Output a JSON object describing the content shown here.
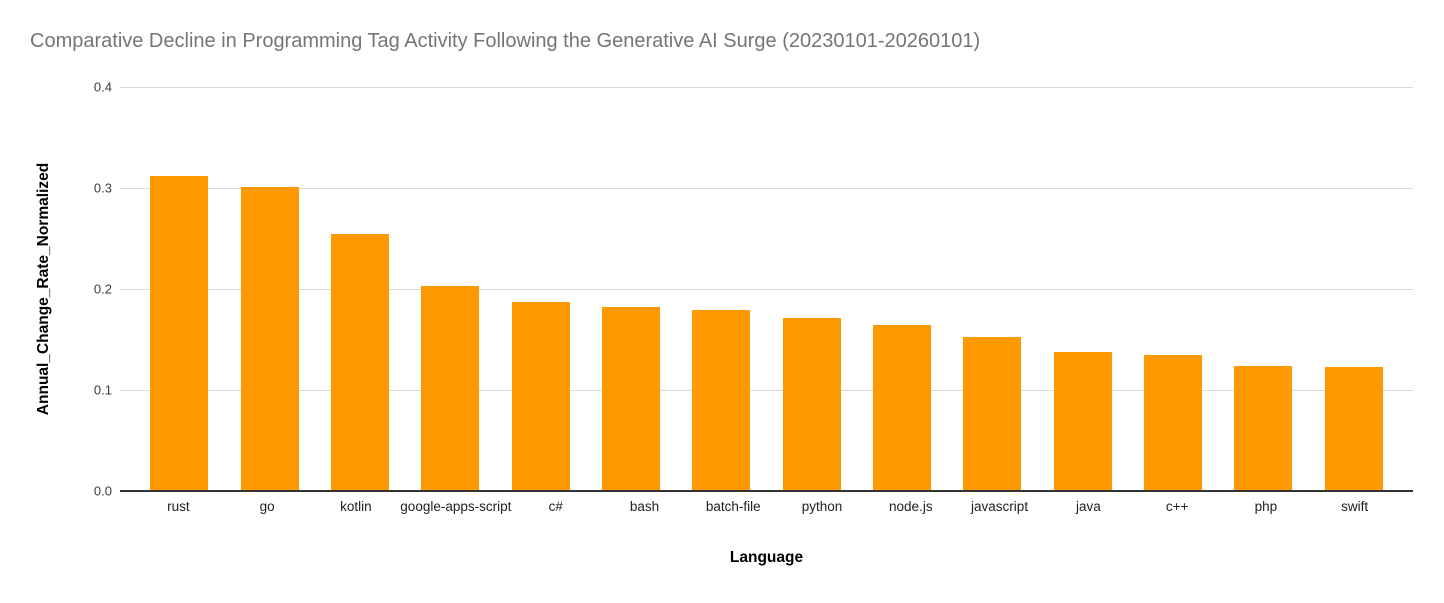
{
  "chart_data": {
    "type": "bar",
    "title": "Comparative Decline in Programming Tag Activity Following the Generative AI Surge (20230101-20260101)",
    "xlabel": "Language",
    "ylabel": "Annual_Change_Rate_Normalized",
    "categories": [
      "rust",
      "go",
      "kotlin",
      "google-apps-script",
      "c#",
      "bash",
      "batch-file",
      "python",
      "node.js",
      "javascript",
      "java",
      "c++",
      "php",
      "swift"
    ],
    "values": [
      0.312,
      0.301,
      0.254,
      0.203,
      0.187,
      0.182,
      0.179,
      0.171,
      0.164,
      0.152,
      0.138,
      0.135,
      0.124,
      0.123
    ],
    "ylim": [
      0,
      0.4
    ],
    "yticks": [
      0.0,
      0.1,
      0.2,
      0.3,
      0.4
    ],
    "ytick_labels": [
      "0.0",
      "0.1",
      "0.2",
      "0.3",
      "0.4"
    ],
    "grid": true,
    "legend": false,
    "bar_color": "#FF9900",
    "colors": {
      "title": "#757575",
      "axis_title": "#000000",
      "tick_label": "#3c3c3c",
      "gridline": "#d9d9d9",
      "baseline": "#333333",
      "background": "#ffffff"
    }
  }
}
